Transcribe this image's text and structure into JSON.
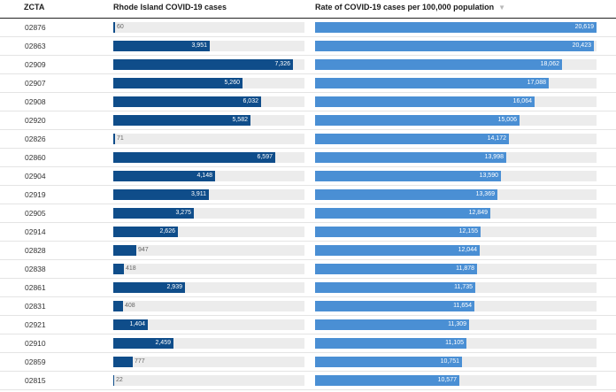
{
  "header": {
    "zcta": "ZCTA",
    "cases": "Rhode Island COVID-19 cases",
    "rate": "Rate of COVID-19 cases per 100,000 population",
    "sort_icon": "▼"
  },
  "colors": {
    "cases_bar": "#0f4d8a",
    "rate_bar": "#4a8fd4",
    "track": "#ececec"
  },
  "chart_data": {
    "type": "table",
    "columns": [
      "ZCTA",
      "Rhode Island COVID-19 cases",
      "Rate of COVID-19 cases per 100,000 population"
    ],
    "sorted_by": "Rate of COVID-19 cases per 100,000 population",
    "sort_order": "descending",
    "cases_max": 7800,
    "rate_max": 20619,
    "rows": [
      {
        "zcta": "02876",
        "cases": 60,
        "cases_label": "60",
        "rate": 20619,
        "rate_label": "20,619"
      },
      {
        "zcta": "02863",
        "cases": 3951,
        "cases_label": "3,951",
        "rate": 20423,
        "rate_label": "20,423"
      },
      {
        "zcta": "02909",
        "cases": 7326,
        "cases_label": "7,326",
        "rate": 18062,
        "rate_label": "18,062"
      },
      {
        "zcta": "02907",
        "cases": 5260,
        "cases_label": "5,260",
        "rate": 17088,
        "rate_label": "17,088"
      },
      {
        "zcta": "02908",
        "cases": 6032,
        "cases_label": "6,032",
        "rate": 16064,
        "rate_label": "16,064"
      },
      {
        "zcta": "02920",
        "cases": 5582,
        "cases_label": "5,582",
        "rate": 15006,
        "rate_label": "15,006"
      },
      {
        "zcta": "02826",
        "cases": 71,
        "cases_label": "71",
        "rate": 14172,
        "rate_label": "14,172"
      },
      {
        "zcta": "02860",
        "cases": 6597,
        "cases_label": "6,597",
        "rate": 13998,
        "rate_label": "13,998"
      },
      {
        "zcta": "02904",
        "cases": 4148,
        "cases_label": "4,148",
        "rate": 13590,
        "rate_label": "13,590"
      },
      {
        "zcta": "02919",
        "cases": 3911,
        "cases_label": "3,911",
        "rate": 13369,
        "rate_label": "13,369"
      },
      {
        "zcta": "02905",
        "cases": 3275,
        "cases_label": "3,275",
        "rate": 12849,
        "rate_label": "12,849"
      },
      {
        "zcta": "02914",
        "cases": 2626,
        "cases_label": "2,626",
        "rate": 12155,
        "rate_label": "12,155"
      },
      {
        "zcta": "02828",
        "cases": 947,
        "cases_label": "947",
        "rate": 12044,
        "rate_label": "12,044"
      },
      {
        "zcta": "02838",
        "cases": 418,
        "cases_label": "418",
        "rate": 11878,
        "rate_label": "11,878"
      },
      {
        "zcta": "02861",
        "cases": 2939,
        "cases_label": "2,939",
        "rate": 11735,
        "rate_label": "11,735"
      },
      {
        "zcta": "02831",
        "cases": 408,
        "cases_label": "408",
        "rate": 11654,
        "rate_label": "11,654"
      },
      {
        "zcta": "02921",
        "cases": 1404,
        "cases_label": "1,404",
        "rate": 11309,
        "rate_label": "11,309"
      },
      {
        "zcta": "02910",
        "cases": 2459,
        "cases_label": "2,459",
        "rate": 11105,
        "rate_label": "11,105"
      },
      {
        "zcta": "02859",
        "cases": 777,
        "cases_label": "777",
        "rate": 10751,
        "rate_label": "10,751"
      },
      {
        "zcta": "02815",
        "cases": 22,
        "cases_label": "22",
        "rate": 10577,
        "rate_label": "10,577"
      }
    ]
  }
}
